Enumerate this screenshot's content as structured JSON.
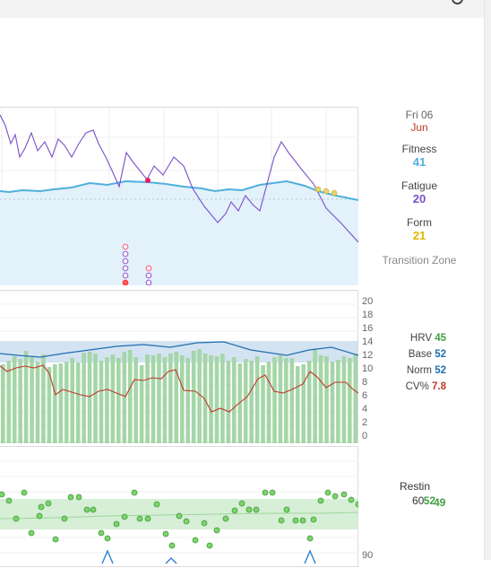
{
  "colors": {
    "fitness": "#4fb0dd",
    "fatigue": "#7a4fc9",
    "form": "#e0b800",
    "hrv": "#43a047",
    "base": "#1f6fb0",
    "norm": "#1f6fb0",
    "cv": "#c0392b",
    "bar": "#a5d6a7",
    "rhr": "#7cd36c"
  },
  "icons": {
    "help": "help-circle-icon"
  },
  "fitness_panel": {
    "date": "Fri 06",
    "month": "Jun",
    "fitness_label": "Fitness",
    "fitness_value": "41",
    "fatigue_label": "Fatigue",
    "fatigue_value": "20",
    "form_label": "Form",
    "form_value": "21",
    "zone": "Transition Zone"
  },
  "hrv_panel": {
    "hrv_label": "HRV",
    "hrv_value": "45",
    "base_label": "Base",
    "base_value": "52",
    "norm_label": "Norm",
    "norm_value": "52",
    "cv_label": "CV%",
    "cv_value": "7.8",
    "axis_ticks": [
      "20",
      "18",
      "16",
      "14",
      "12",
      "10",
      "8",
      "6",
      "4",
      "2",
      "0"
    ]
  },
  "rhr_panel": {
    "label": "Restin",
    "value_a": "60",
    "value_b": "52",
    "value_c": "49",
    "axis_tick": "90"
  },
  "chart_data": [
    {
      "type": "line",
      "series": [
        {
          "name": "Fitness"
        },
        {
          "name": "Fatigue"
        },
        {
          "name": "Form"
        }
      ]
    },
    {
      "type": "bar",
      "ylim": [
        0,
        20
      ],
      "series": [
        {
          "name": "HRV"
        },
        {
          "name": "Base"
        },
        {
          "name": "Norm"
        },
        {
          "name": "CV%"
        }
      ]
    },
    {
      "type": "scatter",
      "series": [
        {
          "name": "Restin"
        }
      ]
    }
  ]
}
